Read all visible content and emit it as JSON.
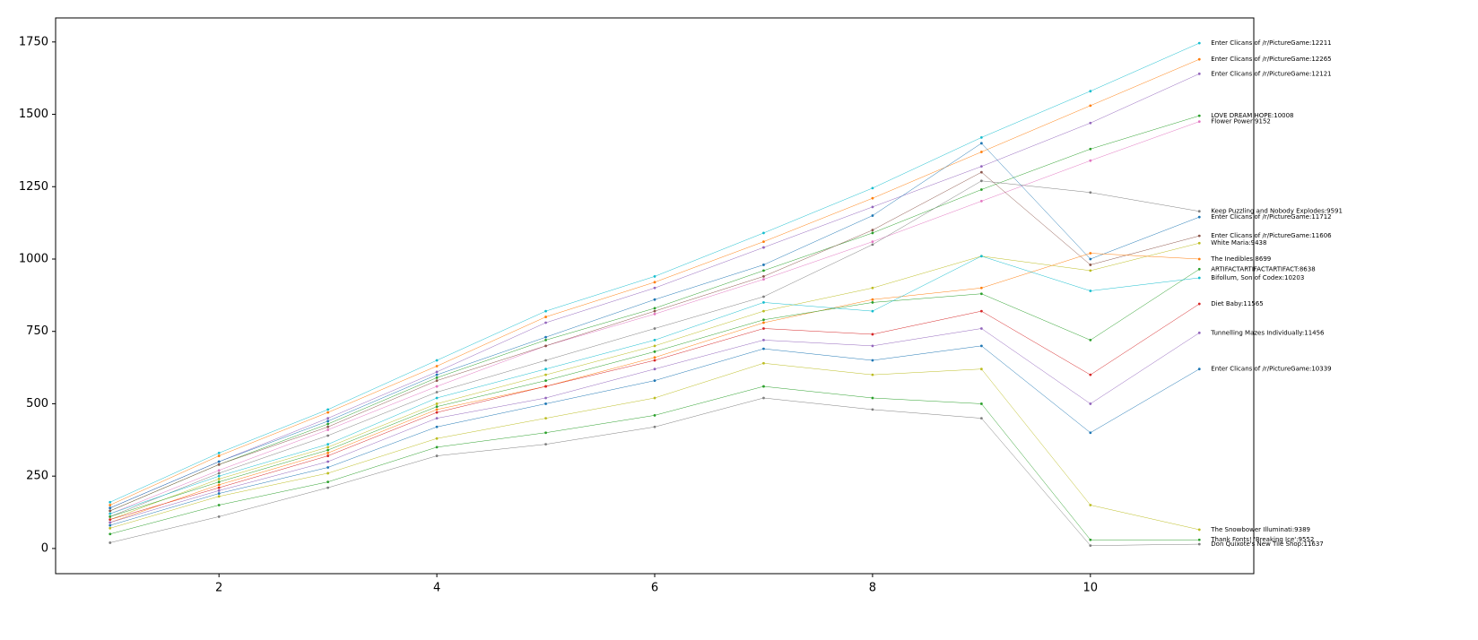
{
  "chart_data": {
    "type": "line",
    "x": [
      1,
      2,
      3,
      4,
      5,
      6,
      7,
      8,
      9,
      10,
      11
    ],
    "xlim": [
      0.5,
      11.5
    ],
    "ylim": [
      -87,
      1833
    ],
    "xticks": [
      2,
      4,
      6,
      8,
      10
    ],
    "yticks": [
      0,
      250,
      500,
      750,
      1000,
      1250,
      1500,
      1750
    ],
    "series": [
      {
        "name": "Enter Clicans of /r/PictureGame:12211",
        "color": "#17becf",
        "values": [
          160,
          330,
          480,
          650,
          820,
          940,
          1090,
          1245,
          1420,
          1580,
          1746
        ]
      },
      {
        "name": "Enter Clicans of /r/PictureGame:12265",
        "color": "#ff7f0e",
        "values": [
          150,
          320,
          470,
          630,
          800,
          920,
          1060,
          1210,
          1370,
          1530,
          1690
        ]
      },
      {
        "name": "Enter Clicans of /r/PictureGame:12121",
        "color": "#9467bd",
        "values": [
          140,
          300,
          450,
          610,
          780,
          900,
          1040,
          1180,
          1320,
          1470,
          1640
        ]
      },
      {
        "name": "LOVE DREAM HOPE:10008",
        "color": "#2ca02c",
        "values": [
          130,
          290,
          430,
          590,
          720,
          830,
          960,
          1090,
          1240,
          1380,
          1495
        ]
      },
      {
        "name": "Flower Power:9152",
        "color": "#e377c2",
        "values": [
          120,
          270,
          410,
          560,
          700,
          810,
          930,
          1060,
          1200,
          1340,
          1475
        ]
      },
      {
        "name": "Keep Puzzling and Nobody Explodes:9591",
        "color": "#7f7f7f",
        "values": [
          110,
          260,
          390,
          540,
          650,
          760,
          870,
          1050,
          1270,
          1230,
          1165
        ]
      },
      {
        "name": "Enter Clicans of /r/PictureGame:11712",
        "color": "#1f77b4",
        "values": [
          140,
          300,
          440,
          600,
          730,
          860,
          980,
          1150,
          1400,
          1000,
          1145
        ]
      },
      {
        "name": "Enter Clicans of /r/PictureGame:11606",
        "color": "#8c564b",
        "values": [
          130,
          290,
          420,
          580,
          700,
          820,
          940,
          1100,
          1300,
          980,
          1080
        ]
      },
      {
        "name": "White Maria:9438",
        "color": "#bcbd22",
        "values": [
          100,
          240,
          350,
          500,
          600,
          700,
          820,
          900,
          1010,
          960,
          1055
        ]
      },
      {
        "name": "The Inedibles:8699",
        "color": "#ff7f0e",
        "values": [
          90,
          220,
          330,
          480,
          560,
          660,
          780,
          860,
          900,
          1020,
          1000
        ]
      },
      {
        "name": "ARTIFACTARTIFACTARTIFACT:8638",
        "color": "#2ca02c",
        "values": [
          110,
          230,
          340,
          490,
          580,
          680,
          790,
          850,
          880,
          720,
          965
        ]
      },
      {
        "name": "Bifollum, Son of Codex:10203",
        "color": "#17becf",
        "values": [
          120,
          250,
          360,
          520,
          620,
          720,
          850,
          820,
          1010,
          890,
          935
        ]
      },
      {
        "name": "Diet Baby:11565",
        "color": "#d62728",
        "values": [
          100,
          210,
          320,
          470,
          560,
          650,
          760,
          740,
          820,
          600,
          845
        ]
      },
      {
        "name": "Tunnelling Mazes Individually:11456",
        "color": "#9467bd",
        "values": [
          90,
          200,
          300,
          450,
          520,
          620,
          720,
          700,
          760,
          500,
          745
        ]
      },
      {
        "name": "Enter Clicans of /r/PictureGame:10339",
        "color": "#1f77b4",
        "values": [
          80,
          190,
          280,
          420,
          500,
          580,
          690,
          650,
          700,
          400,
          620
        ]
      },
      {
        "name": "The Snowbower Illuminati:9389",
        "color": "#bcbd22",
        "values": [
          70,
          180,
          260,
          380,
          450,
          520,
          640,
          600,
          620,
          150,
          65
        ]
      },
      {
        "name": "Thank Fonts! 'Breaking Ice':9552",
        "color": "#2ca02c",
        "values": [
          50,
          150,
          230,
          350,
          400,
          460,
          560,
          520,
          500,
          30,
          30
        ]
      },
      {
        "name": "Don Quixote's New Tile Shop:11637",
        "color": "#7f7f7f",
        "values": [
          20,
          110,
          210,
          320,
          360,
          420,
          520,
          480,
          450,
          10,
          15
        ]
      }
    ]
  }
}
